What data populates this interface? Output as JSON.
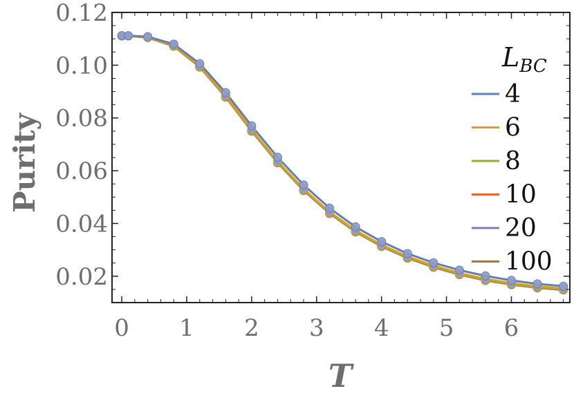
{
  "chart_data": {
    "type": "line",
    "title": "",
    "xlabel": "T",
    "ylabel": "Purity",
    "xlim": [
      -0.15,
      6.9
    ],
    "ylim": [
      0.01,
      0.12
    ],
    "x_ticks": [
      "0",
      "1",
      "2",
      "3",
      "4",
      "5",
      "6"
    ],
    "y_ticks": [
      "0.02",
      "0.04",
      "0.06",
      "0.08",
      "0.10",
      "0.12"
    ],
    "legend": {
      "title_main": "L",
      "title_sub": "BC",
      "placement": "right"
    },
    "x": [
      0,
      0.1,
      0.4,
      0.8,
      1.2,
      1.6,
      2.0,
      2.4,
      2.8,
      3.2,
      3.6,
      4.0,
      4.4,
      4.8,
      5.2,
      5.6,
      6.0,
      6.4,
      6.8
    ],
    "series": [
      {
        "name": "4",
        "color": "#5e81b5",
        "values": [
          0.1112,
          0.1112,
          0.1108,
          0.108,
          0.1006,
          0.0896,
          0.077,
          0.0651,
          0.0546,
          0.0458,
          0.0387,
          0.0331,
          0.0286,
          0.0251,
          0.0223,
          0.0201,
          0.0184,
          0.0171,
          0.0162
        ]
      },
      {
        "name": "6",
        "color": "#e19c24",
        "values": [
          0.1111,
          0.1111,
          0.1106,
          0.1075,
          0.0997,
          0.0884,
          0.0756,
          0.0636,
          0.0531,
          0.0444,
          0.0374,
          0.0319,
          0.0275,
          0.024,
          0.0212,
          0.019,
          0.0174,
          0.0162,
          0.0153
        ]
      },
      {
        "name": "8",
        "color": "#8fb032",
        "values": [
          0.1111,
          0.1111,
          0.1105,
          0.1073,
          0.0995,
          0.0881,
          0.0752,
          0.0632,
          0.0527,
          0.044,
          0.037,
          0.0315,
          0.0271,
          0.0236,
          0.0208,
          0.0186,
          0.017,
          0.0158,
          0.015
        ]
      },
      {
        "name": "10",
        "color": "#eb6235",
        "values": [
          0.1111,
          0.1111,
          0.1105,
          0.1072,
          0.0994,
          0.088,
          0.0751,
          0.0631,
          0.0526,
          0.0439,
          0.0369,
          0.0314,
          0.027,
          0.0235,
          0.0207,
          0.0185,
          0.0169,
          0.0157,
          0.0149
        ]
      },
      {
        "name": "20",
        "color": "#8778b3",
        "values": [
          0.1111,
          0.1111,
          0.1105,
          0.1072,
          0.0993,
          0.0879,
          0.075,
          0.063,
          0.0525,
          0.0438,
          0.0368,
          0.0313,
          0.0269,
          0.0234,
          0.0206,
          0.0184,
          0.0168,
          0.0156,
          0.0148
        ]
      },
      {
        "name": "100",
        "color": "#c56e1a",
        "values": [
          0.1111,
          0.1111,
          0.1105,
          0.1072,
          0.0993,
          0.0879,
          0.075,
          0.063,
          0.0525,
          0.0438,
          0.0368,
          0.0313,
          0.0269,
          0.0234,
          0.0206,
          0.0184,
          0.0168,
          0.0156,
          0.0148
        ]
      }
    ],
    "marker_color": "#8f9bc9",
    "grid": false
  }
}
